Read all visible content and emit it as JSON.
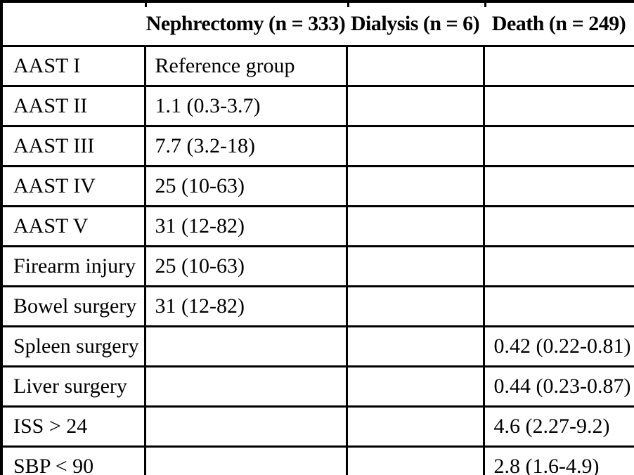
{
  "table": {
    "header": {
      "stub": "",
      "col_nephrectomy": "Nephrectomy (n = 333)",
      "col_dialysis": "Dialysis (n = 6)",
      "col_death": "Death (n = 249)"
    },
    "rows": [
      {
        "label": "AAST I",
        "nephrectomy": "Reference group",
        "dialysis": "",
        "death": ""
      },
      {
        "label": "AAST II",
        "nephrectomy": "1.1 (0.3-3.7)",
        "dialysis": "",
        "death": ""
      },
      {
        "label": "AAST III",
        "nephrectomy": "7.7 (3.2-18)",
        "dialysis": "",
        "death": ""
      },
      {
        "label": "AAST IV",
        "nephrectomy": "25 (10-63)",
        "dialysis": "",
        "death": ""
      },
      {
        "label": "AAST V",
        "nephrectomy": "31 (12-82)",
        "dialysis": "",
        "death": ""
      },
      {
        "label": "Firearm injury",
        "nephrectomy": "25 (10-63)",
        "dialysis": "",
        "death": ""
      },
      {
        "label": "Bowel surgery",
        "nephrectomy": "31 (12-82)",
        "dialysis": "",
        "death": ""
      },
      {
        "label": "Spleen surgery",
        "nephrectomy": "",
        "dialysis": "",
        "death": "0.42 (0.22-0.81)"
      },
      {
        "label": "Liver surgery",
        "nephrectomy": "",
        "dialysis": "",
        "death": "0.44 (0.23-0.87)"
      },
      {
        "label": "ISS > 24",
        "nephrectomy": "",
        "dialysis": "",
        "death": "4.6 (2.27-9.2)"
      },
      {
        "label": "SBP < 90",
        "nephrectomy": "",
        "dialysis": "",
        "death": "2.8 (1.6-4.9)"
      }
    ]
  }
}
